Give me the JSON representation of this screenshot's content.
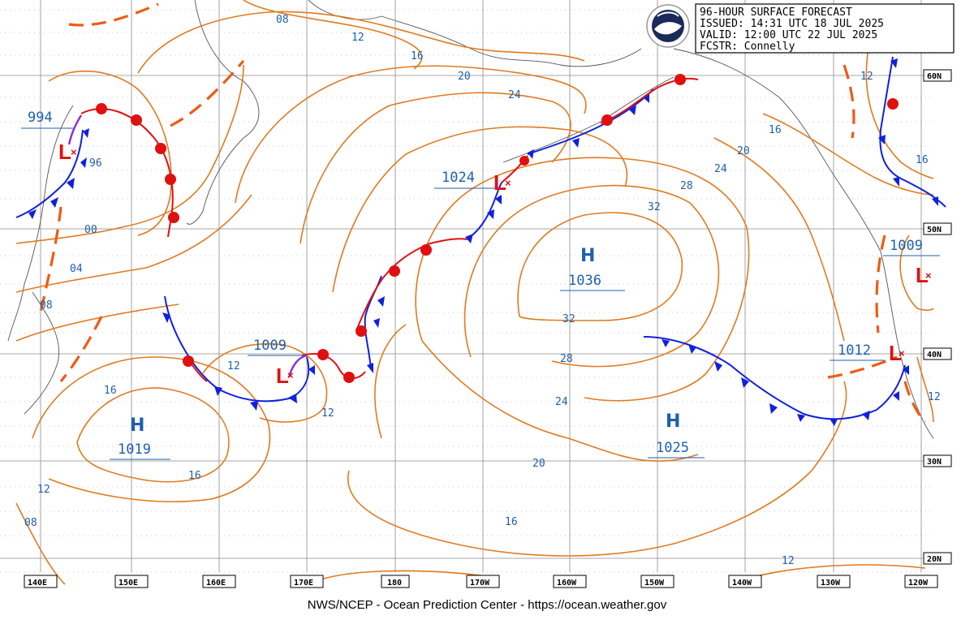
{
  "header": {
    "line1": "96-HOUR SURFACE FORECAST",
    "line2": "ISSUED: 14:31 UTC 18 JUL 2025",
    "line3": "VALID:  12:00 UTC 22 JUL 2025",
    "line4": "FCSTR:  Connelly"
  },
  "footer": "NWS/NCEP - Ocean Prediction Center - https://ocean.weather.gov",
  "longitude_labels": [
    "140E",
    "150E",
    "160E",
    "170E",
    "180",
    "170W",
    "160W",
    "150W",
    "140W",
    "130W",
    "120W"
  ],
  "latitude_labels": [
    "60N",
    "50N",
    "40N",
    "30N",
    "20N"
  ],
  "pressure_centers": [
    {
      "type": "L",
      "pressure": "994"
    },
    {
      "type": "L",
      "pressure": "1024"
    },
    {
      "type": "H",
      "pressure": "1036"
    },
    {
      "type": "L",
      "pressure": "1009"
    },
    {
      "type": "H",
      "pressure": "1019"
    },
    {
      "type": "H",
      "pressure": "1025"
    },
    {
      "type": "L",
      "pressure": "1009"
    },
    {
      "type": "L",
      "pressure": "1012"
    }
  ],
  "isobar_labels": [
    "08",
    "12",
    "16",
    "20",
    "24",
    "96",
    "00",
    "04",
    "08",
    "28",
    "32",
    "20",
    "24",
    "16",
    "12",
    "32",
    "28",
    "24",
    "12",
    "12",
    "16",
    "16",
    "12",
    "08",
    "20",
    "16",
    "12",
    "16",
    "12"
  ],
  "colors": {
    "isobar": "#e07a1f",
    "cold_front": "#1020e0",
    "warm_front": "#e01010",
    "occluded": "#8a2be2",
    "trough": "#f05a14",
    "label": "#1f5fae"
  }
}
